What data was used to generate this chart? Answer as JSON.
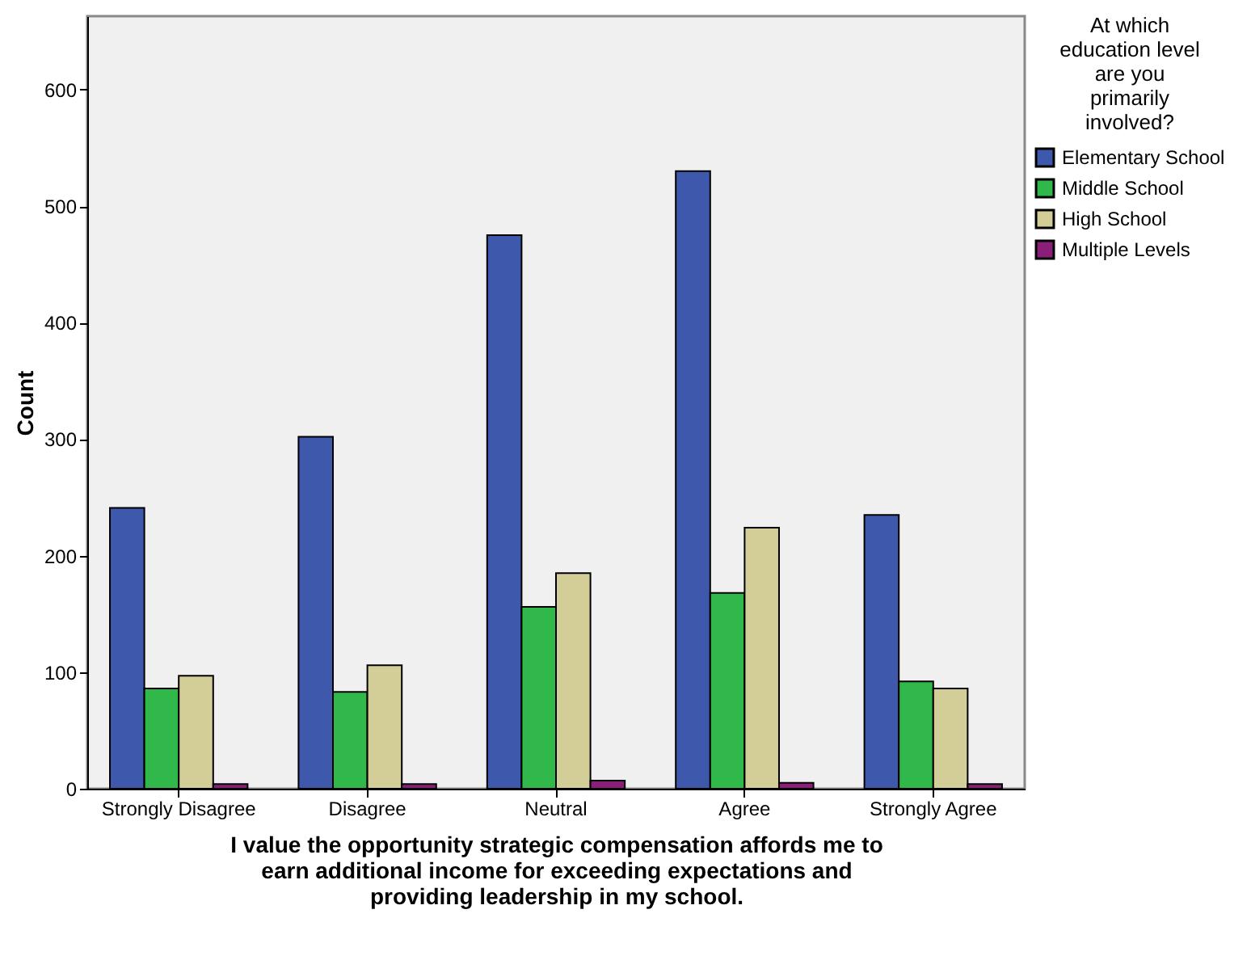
{
  "chart_data": {
    "type": "bar",
    "xlabel": "I value the opportunity strategic compensation affords me to earn additional income for exceeding expectations and providing leadership in my school.",
    "ylabel": "Count",
    "legend_title": "At which education level are you primarily involved?",
    "categories": [
      "Strongly Disagree",
      "Disagree",
      "Neutral",
      "Agree",
      "Strongly Agree"
    ],
    "series": [
      {
        "name": "Elementary School",
        "color": "#3e58ac",
        "values": [
          241,
          302,
          475,
          530,
          235
        ]
      },
      {
        "name": "Middle School",
        "color": "#30b84a",
        "values": [
          86,
          83,
          156,
          168,
          92
        ]
      },
      {
        "name": "High School",
        "color": "#d3ce97",
        "values": [
          97,
          106,
          185,
          224,
          86
        ]
      },
      {
        "name": "Multiple Levels",
        "color": "#8b1e78",
        "values": [
          4,
          4,
          7,
          5,
          4
        ]
      }
    ],
    "ylim": [
      0,
      663
    ],
    "yticks": [
      0,
      100,
      200,
      300,
      400,
      500,
      600
    ],
    "grid": false,
    "legend": "top right"
  }
}
